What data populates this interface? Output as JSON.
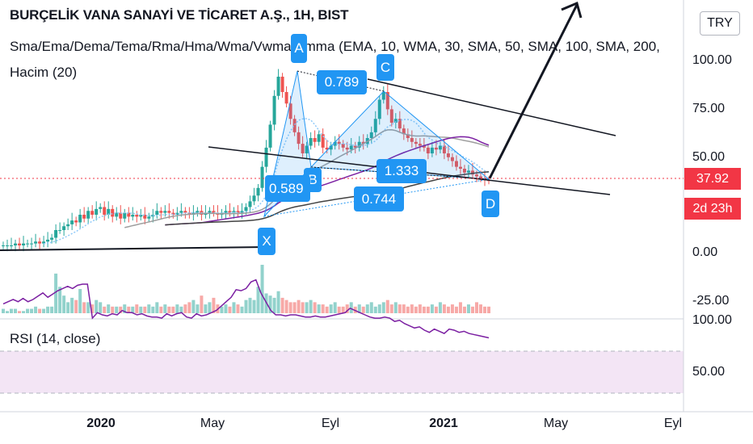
{
  "header": {
    "title": "BURÇELİK VANA SANAYİ VE TİCARET A.Ş., 1H, BIST",
    "indicators": "Sma/Ema/Dema/Tema/Rma/Hma/Wma/Vwma/Smma (EMA, 10, WMA, 30, SMA, 50, SMA, 100, SMA, 200,",
    "volume": "Hacim (20)"
  },
  "currency_button": "TRY",
  "rsi_label": "RSI (14, close)",
  "price_tag": {
    "value": "37.92",
    "countdown": "2d 23h"
  },
  "colors": {
    "up": "#26a69a",
    "down": "#ef5350",
    "pattern": "#2196f3",
    "rsi": "#7b1fa2",
    "rsi_band": "#f3e5f5",
    "price_line": "#f23645"
  },
  "pattern_labels": {
    "X": "X",
    "A": "A",
    "B": "B",
    "C": "C",
    "D": "D",
    "r_xab": "0.589",
    "r_abc": "0.789",
    "r_bcd": "1.333",
    "r_xad": "0.744"
  },
  "chart_data": [
    {
      "type": "candlestick",
      "title": "BURÇELİK VANA SANAYİ VE TİCARET A.Ş., 1H, BIST",
      "ylim": [
        -28,
        127
      ],
      "y_ticks": [
        "100.00",
        "75.00",
        "50.00",
        "0.00",
        "-25.00"
      ],
      "x_ticks": [
        "2020",
        "May",
        "Eyl",
        "2021",
        "May",
        "Eyl"
      ],
      "current_price": 37.92,
      "series": [
        {
          "name": "EMA 10",
          "color": "#2196f3"
        },
        {
          "name": "WMA 30",
          "color": "#ff9800"
        },
        {
          "name": "SMA 50",
          "color": "#9e9e9e"
        },
        {
          "name": "SMA 100",
          "color": "#7b1fa2"
        },
        {
          "name": "SMA 200",
          "color": "#424242"
        }
      ],
      "closes": [
        4,
        4,
        4,
        5,
        4,
        5,
        5,
        5,
        6,
        5,
        6,
        7,
        8,
        12,
        12,
        14,
        15,
        17,
        16,
        20,
        18,
        22,
        20,
        23,
        24,
        20,
        23,
        19,
        21,
        18,
        21,
        19,
        20,
        19,
        20,
        18,
        19,
        20,
        22,
        21,
        22,
        21,
        20,
        21,
        22,
        21,
        20,
        21,
        22,
        20,
        21,
        22,
        21,
        20,
        21,
        22,
        21,
        22,
        21,
        22,
        24,
        27,
        30,
        34,
        45,
        55,
        67,
        82,
        92,
        84,
        78,
        70,
        63,
        57,
        52,
        56,
        60,
        58,
        62,
        55,
        54,
        56,
        58,
        57,
        55,
        54,
        56,
        55,
        58,
        57,
        60,
        63,
        70,
        80,
        84,
        75,
        68,
        70,
        65,
        62,
        60,
        58,
        57,
        56,
        55,
        52,
        55,
        54,
        56,
        52,
        50,
        48,
        45,
        44,
        42,
        43,
        41,
        40,
        39,
        38,
        37.92
      ],
      "harmonic_pattern": {
        "X": 16,
        "A": 95,
        "B": 47,
        "C": 85,
        "D": 37,
        "ratios": {
          "XAB": 0.589,
          "ABC": 0.789,
          "BCD": 1.333,
          "XAD": 0.744
        }
      }
    },
    {
      "type": "bar",
      "title": "Hacim (20)",
      "description_values": "relative volume heights",
      "values": [
        2,
        1,
        2,
        2,
        1,
        1,
        2,
        2,
        3,
        2,
        2,
        3,
        3,
        18,
        12,
        8,
        5,
        7,
        6,
        11,
        5,
        5,
        4,
        6,
        5,
        3,
        4,
        3,
        3,
        3,
        4,
        3,
        3,
        4,
        3,
        3,
        4,
        3,
        5,
        3,
        4,
        3,
        3,
        4,
        3,
        4,
        5,
        6,
        4,
        8,
        4,
        5,
        7,
        4,
        3,
        4,
        3,
        5,
        4,
        3,
        6,
        7,
        6,
        12,
        22,
        9,
        8,
        7,
        10,
        7,
        6,
        5,
        5,
        6,
        5,
        5,
        6,
        5,
        4,
        4,
        3,
        4,
        5,
        3,
        3,
        4,
        5,
        3,
        4,
        3,
        4,
        5,
        3,
        4,
        5,
        6,
        4,
        5,
        4,
        4,
        3,
        4,
        3,
        4,
        3,
        3,
        4,
        3,
        5,
        4,
        3,
        4,
        3,
        5,
        3,
        4,
        3,
        5,
        4,
        3,
        3
      ]
    },
    {
      "type": "line",
      "title": "RSI (14, close)",
      "ylim": [
        30,
        100
      ],
      "y_ticks": [
        "100.00",
        "50.00"
      ],
      "bands": [
        70,
        30
      ],
      "values": [
        68,
        70,
        72,
        70,
        73,
        70,
        72,
        75,
        78,
        74,
        77,
        80,
        82,
        84,
        82,
        85,
        86,
        86,
        55,
        60,
        58,
        57,
        59,
        58,
        62,
        60,
        60,
        58,
        59,
        57,
        56,
        56,
        55,
        59,
        57,
        59,
        60,
        56,
        55,
        59,
        57,
        58,
        60,
        62,
        66,
        70,
        74,
        81,
        80,
        82,
        88,
        90,
        78,
        70,
        62,
        58,
        58,
        57,
        58,
        58,
        57,
        56,
        56,
        57,
        56,
        56,
        57,
        58,
        59,
        60,
        64,
        62,
        60,
        58,
        56,
        55,
        55,
        56,
        55,
        52,
        53,
        50,
        48,
        46,
        47,
        44,
        42,
        45,
        43,
        41,
        45,
        44,
        42,
        43,
        41,
        40,
        39,
        38,
        37
      ]
    }
  ]
}
